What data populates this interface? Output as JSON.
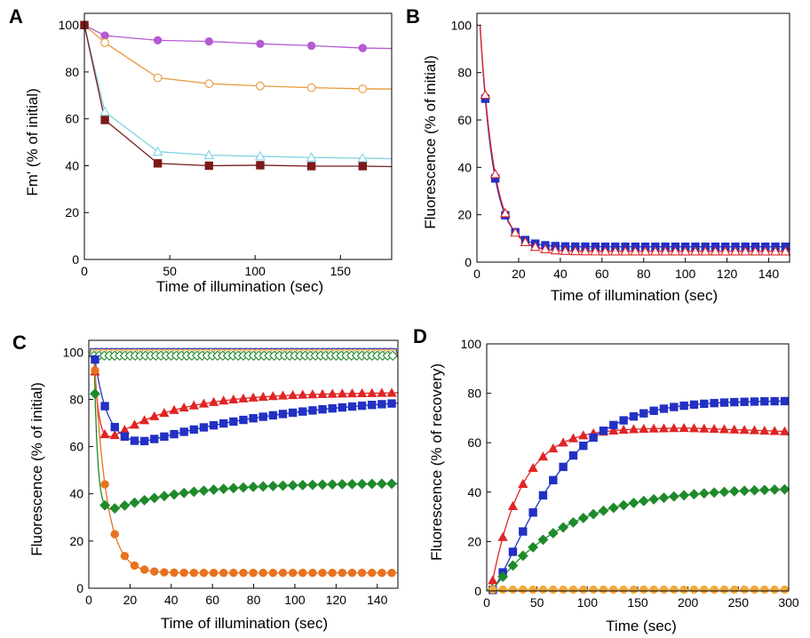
{
  "chart_data": [
    {
      "panel": "A",
      "type": "line",
      "xlabel": "Time of illumination (sec)",
      "ylabel": "Fm' (% of initial)",
      "xlim": [
        0,
        180
      ],
      "ylim": [
        0,
        105
      ],
      "xticks": [
        0,
        50,
        100,
        150
      ],
      "yticks": [
        0,
        20,
        40,
        60,
        80,
        100
      ],
      "grid": false,
      "series": [
        {
          "color": "#b55ad2",
          "marker": "circle",
          "filled": true,
          "x": [
            0,
            12,
            43,
            73,
            103,
            133,
            163
          ],
          "y": [
            100,
            95.5,
            93.5,
            93,
            92,
            91.2,
            90.2
          ],
          "curve_x": [
            0,
            12,
            43,
            73,
            103,
            133,
            163,
            180
          ],
          "curve_y": [
            100,
            95.5,
            93.5,
            93,
            92,
            91.2,
            90.2,
            90
          ]
        },
        {
          "color": "#e8993b",
          "marker": "circle",
          "filled": false,
          "x": [
            0,
            12,
            43,
            73,
            103,
            133,
            163
          ],
          "y": [
            100,
            92.5,
            77.5,
            75,
            74,
            73.3,
            72.8
          ],
          "curve_x": [
            0,
            12,
            43,
            73,
            103,
            133,
            163,
            180
          ],
          "curve_y": [
            100,
            92.5,
            77.5,
            75,
            74,
            73.3,
            72.8,
            72.7
          ]
        },
        {
          "color": "#7fd3e3",
          "marker": "triangle",
          "filled": false,
          "x": [
            0,
            12,
            43,
            73,
            103,
            133,
            163
          ],
          "y": [
            100,
            63,
            46,
            44.5,
            44,
            43.5,
            43.2
          ],
          "curve_x": [
            0,
            12,
            43,
            73,
            103,
            133,
            163,
            180
          ],
          "curve_y": [
            100,
            63,
            46,
            44.5,
            44,
            43.5,
            43.2,
            43
          ]
        },
        {
          "color": "#7a1a1a",
          "marker": "square",
          "filled": true,
          "x": [
            0,
            12,
            43,
            73,
            103,
            133,
            163
          ],
          "y": [
            100,
            59.5,
            41,
            40,
            40.2,
            39.8,
            39.8
          ],
          "curve_x": [
            0,
            12,
            43,
            73,
            103,
            133,
            163,
            180
          ],
          "curve_y": [
            100,
            59.5,
            41,
            40,
            40.2,
            39.8,
            39.8,
            39.6
          ]
        }
      ]
    },
    {
      "panel": "B",
      "type": "line",
      "xlabel": "Time of illumination (sec)",
      "ylabel": "Fluorescence (% of initial)",
      "xlim": [
        0,
        150
      ],
      "ylim": [
        0,
        105
      ],
      "xticks": [
        0,
        20,
        40,
        60,
        80,
        100,
        120,
        140
      ],
      "yticks": [
        0,
        20,
        40,
        60,
        80,
        100
      ],
      "grid": false,
      "series": [
        {
          "color": "#2230c4",
          "marker": "square",
          "filled": true,
          "model": {
            "kind": "decay",
            "start": 100,
            "plateau": 6.5,
            "t0": 1.5,
            "tau": 6.2
          },
          "curve_range": [
            1.5,
            150
          ],
          "x_start": 4,
          "x_step": 4.8,
          "x_count": 31
        },
        {
          "color": "#e02525",
          "marker": "triangle",
          "filled": false,
          "model": {
            "kind": "decay",
            "start": 100,
            "plateau": 4.5,
            "t0": 1.5,
            "tau": 6.8
          },
          "curve_range": [
            1.5,
            150
          ],
          "x_start": 4,
          "x_step": 4.8,
          "x_count": 31
        }
      ]
    },
    {
      "panel": "C",
      "type": "line",
      "xlabel": "Time of illumination (sec)",
      "ylabel": "Fluorescence (% of initial)",
      "xlim": [
        0,
        150
      ],
      "ylim": [
        0,
        105
      ],
      "xticks": [
        0,
        20,
        40,
        60,
        80,
        100,
        120,
        140
      ],
      "yticks": [
        0,
        20,
        40,
        60,
        80,
        100
      ],
      "grid": false,
      "series": [
        {
          "color": "#2230c4",
          "marker": "square",
          "filled": false,
          "size": 4,
          "model": {
            "kind": "flat",
            "value": 100
          },
          "curve_range": [
            2.5,
            150
          ],
          "x_start": 2.5,
          "x_step": 2.5,
          "x_count": 59
        },
        {
          "color": "#e02525",
          "marker": "triangle",
          "filled": false,
          "size": 4,
          "model": {
            "kind": "flat",
            "value": 99.5
          },
          "curve_range": [
            2.5,
            150
          ],
          "x_start": 2.5,
          "x_step": 2.5,
          "x_count": 59
        },
        {
          "color": "#e8993b",
          "marker": "circle",
          "filled": false,
          "size": 4,
          "model": {
            "kind": "flat",
            "value": 99.6
          },
          "curve_range": [
            2.5,
            150
          ],
          "x_start": 2.5,
          "x_step": 2.5,
          "x_count": 59
        },
        {
          "color": "#1e8a2a",
          "marker": "diamond",
          "filled": false,
          "size": 4,
          "model": {
            "kind": "flat",
            "value": 98.5
          },
          "curve_range": [
            2.5,
            150
          ],
          "x_start": 2.5,
          "x_step": 2.5,
          "x_count": 59
        },
        {
          "color": "#e02525",
          "marker": "triangle",
          "filled": true,
          "model": {
            "kind": "dip",
            "A": 100,
            "P": 57.5,
            "tau1": 2.2,
            "R": 25.5,
            "tau2": 32,
            "t0": 2.5
          },
          "curve_range": [
            2.5,
            150
          ],
          "x_start": 3,
          "x_step": 4.8,
          "x_count": 31
        },
        {
          "color": "#2230c4",
          "marker": "square",
          "filled": true,
          "model": {
            "kind": "dip",
            "A": 100,
            "P": 61,
            "tau1": 6,
            "R": 22,
            "tau2": 80,
            "t0": 2.5,
            "delay": 22
          },
          "curve_range": [
            2.5,
            150
          ],
          "x_start": 3,
          "x_step": 4.8,
          "x_count": 31
        },
        {
          "color": "#1e8a2a",
          "marker": "diamond",
          "filled": true,
          "model": {
            "kind": "dip",
            "A": 100,
            "P": 30,
            "tau1": 1.7,
            "R": 14.5,
            "tau2": 35,
            "t0": 2.5
          },
          "curve_range": [
            2.5,
            150
          ],
          "x_start": 3,
          "x_step": 4.8,
          "x_count": 31
        },
        {
          "color": "#e8721f",
          "marker": "circle",
          "filled": true,
          "model": {
            "kind": "decay",
            "start": 100,
            "plateau": 6.5,
            "t0": 2.5,
            "tau": 5.8
          },
          "curve_range": [
            2.5,
            150
          ],
          "x_start": 3,
          "x_step": 4.8,
          "x_count": 31
        }
      ]
    },
    {
      "panel": "D",
      "type": "line",
      "xlabel": "Time (sec)",
      "ylabel": "Fluorescence (% of recovery)",
      "xlim": [
        0,
        300
      ],
      "ylim": [
        0,
        100
      ],
      "xticks": [
        0,
        50,
        100,
        150,
        200,
        250,
        300
      ],
      "xtick_labels": [
        "0",
        "50",
        "100",
        "150",
        "200",
        "250",
        "300"
      ],
      "yticks": [
        0,
        20,
        40,
        60,
        80,
        100
      ],
      "grid": false,
      "series": [
        {
          "color": "#e02525",
          "marker": "triangle",
          "filled": true,
          "model": {
            "kind": "rise_sag",
            "max": 66,
            "tau": 30,
            "t0": 4,
            "sag": 1.5
          },
          "curve_range": [
            4,
            295
          ],
          "x_start": 6,
          "x_step": 10,
          "x_count": 30
        },
        {
          "color": "#2230c4",
          "marker": "square",
          "filled": true,
          "model": {
            "kind": "sigmoid_rise",
            "max": 77,
            "tau": 68,
            "t0": 5,
            "n": 1.25
          },
          "curve_range": [
            5,
            295
          ],
          "x_start": 6,
          "x_step": 10,
          "x_count": 30
        },
        {
          "color": "#1e8a2a",
          "marker": "diamond",
          "filled": true,
          "model": {
            "kind": "rise",
            "max": 42,
            "tau": 75,
            "t0": 5
          },
          "curve_range": [
            5,
            295
          ],
          "x_start": 6,
          "x_step": 10,
          "x_count": 30
        },
        {
          "color": "#f2a93b",
          "marker": "circle",
          "filled": true,
          "model": {
            "kind": "flat",
            "value": 0.5
          },
          "curve_range": [
            5,
            295
          ],
          "x_start": 6,
          "x_step": 10,
          "x_count": 30
        }
      ]
    }
  ]
}
